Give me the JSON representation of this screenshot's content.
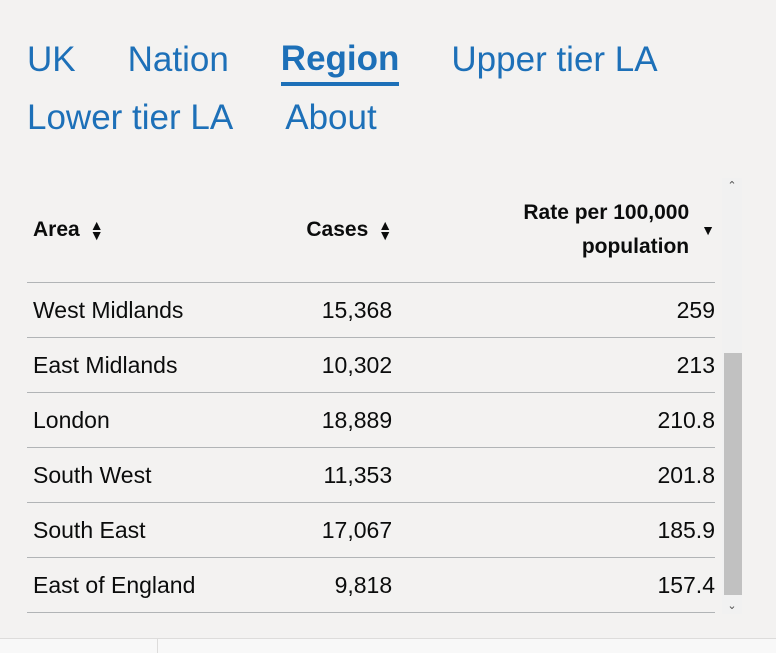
{
  "tabs": {
    "uk": "UK",
    "nation": "Nation",
    "region": "Region",
    "upper": "Upper tier LA",
    "lower": "Lower tier LA",
    "about": "About"
  },
  "table": {
    "headers": {
      "area": "Area",
      "cases": "Cases",
      "rate_line1": "Rate per 100,000",
      "rate_line2": "population"
    },
    "rows": [
      {
        "area": "West Midlands",
        "cases": "15,368",
        "rate": "259"
      },
      {
        "area": "East Midlands",
        "cases": "10,302",
        "rate": "213"
      },
      {
        "area": "London",
        "cases": "18,889",
        "rate": "210.8"
      },
      {
        "area": "South West",
        "cases": "11,353",
        "rate": "201.8"
      },
      {
        "area": "South East",
        "cases": "17,067",
        "rate": "185.9"
      },
      {
        "area": "East of England",
        "cases": "9,818",
        "rate": "157.4"
      }
    ]
  },
  "icons": {
    "sort_both": "sort-both-icon",
    "sort_desc": "sort-descending-icon"
  },
  "colors": {
    "link": "#1d70b8",
    "text": "#0b0c0c",
    "background": "#f3f2f1"
  }
}
